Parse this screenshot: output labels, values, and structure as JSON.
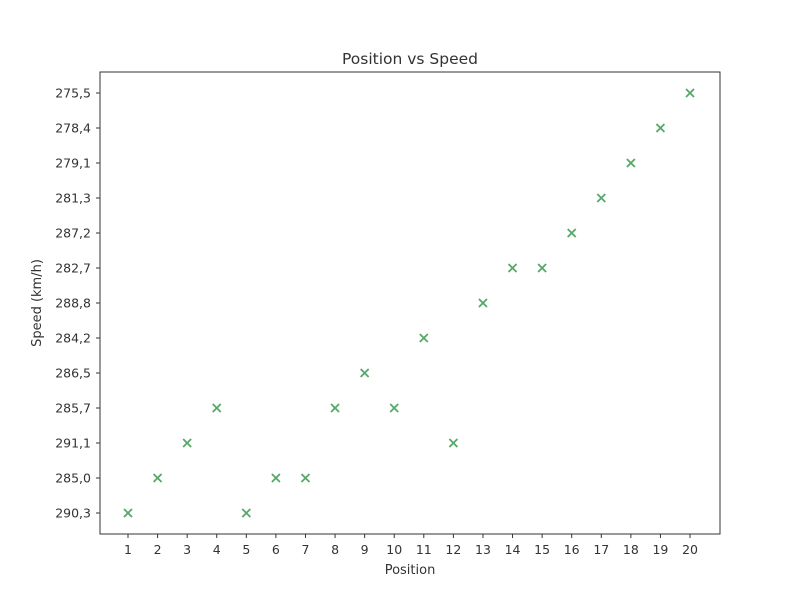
{
  "chart_data": {
    "type": "scatter",
    "title": "Position vs Speed",
    "xlabel": "Position",
    "ylabel": "Speed (km/h)",
    "x_categories": [
      "1",
      "2",
      "3",
      "4",
      "5",
      "6",
      "7",
      "8",
      "9",
      "10",
      "11",
      "12",
      "13",
      "14",
      "15",
      "16",
      "17",
      "18",
      "19",
      "20"
    ],
    "y_categories": [
      "290,3",
      "285,0",
      "291,1",
      "285,7",
      "286,5",
      "284,2",
      "288,8",
      "282,7",
      "287,2",
      "281,3",
      "279,1",
      "278,4",
      "275,5"
    ],
    "points": [
      {
        "x": "1",
        "y": "290,3"
      },
      {
        "x": "2",
        "y": "285,0"
      },
      {
        "x": "3",
        "y": "291,1"
      },
      {
        "x": "4",
        "y": "285,7"
      },
      {
        "x": "5",
        "y": "290,3"
      },
      {
        "x": "6",
        "y": "285,0"
      },
      {
        "x": "7",
        "y": "285,0"
      },
      {
        "x": "8",
        "y": "285,7"
      },
      {
        "x": "9",
        "y": "286,5"
      },
      {
        "x": "10",
        "y": "285,7"
      },
      {
        "x": "11",
        "y": "284,2"
      },
      {
        "x": "12",
        "y": "291,1"
      },
      {
        "x": "13",
        "y": "288,8"
      },
      {
        "x": "14",
        "y": "282,7"
      },
      {
        "x": "15",
        "y": "282,7"
      },
      {
        "x": "16",
        "y": "287,2"
      },
      {
        "x": "17",
        "y": "281,3"
      },
      {
        "x": "18",
        "y": "279,1"
      },
      {
        "x": "19",
        "y": "278,4"
      },
      {
        "x": "20",
        "y": "275,5"
      }
    ],
    "marker": "x",
    "marker_color": "#55a868",
    "grid": false
  }
}
